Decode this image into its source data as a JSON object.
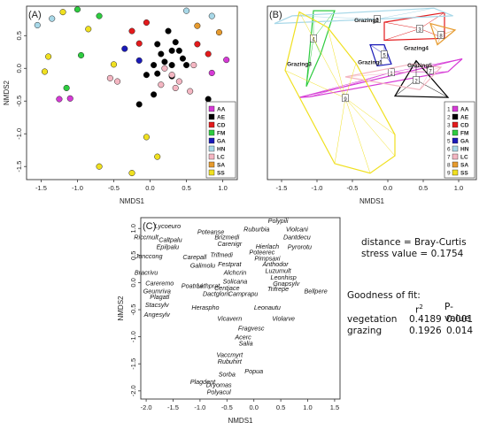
{
  "chart_data": [
    {
      "panel": "(A)",
      "type": "scatter",
      "xlabel": "NMDS1",
      "ylabel": "NMDS2",
      "xlim": [
        -1.7,
        1.2
      ],
      "ylim": [
        -1.7,
        0.95
      ],
      "xticks": [
        "-1.5",
        "-1.0",
        "-0.5",
        "0.0",
        "0.5",
        "1.0"
      ],
      "yticks": [
        "0.5",
        "0.0",
        "-0.5",
        "-1.0",
        "-1.5"
      ],
      "xtick_vals": [
        -1.5,
        -1.0,
        -0.5,
        0.0,
        0.5,
        1.0
      ],
      "ytick_vals": [
        0.5,
        0.0,
        -0.5,
        -1.0,
        -1.5
      ],
      "legend_position": "bottom-right",
      "series": [
        {
          "name": "AA",
          "color": "#d63ad6",
          "points": [
            [
              -1.25,
              -0.47
            ],
            [
              -1.1,
              -0.46
            ],
            [
              1.05,
              0.13
            ],
            [
              0.85,
              -0.07
            ]
          ]
        },
        {
          "name": "AE",
          "color": "#000000",
          "points": [
            [
              0.25,
              0.57
            ],
            [
              0.1,
              0.37
            ],
            [
              0.35,
              0.4
            ],
            [
              0.3,
              0.27
            ],
            [
              0.15,
              0.22
            ],
            [
              0.4,
              0.27
            ],
            [
              0.45,
              0.15
            ],
            [
              0.2,
              0.1
            ],
            [
              0.05,
              0.05
            ],
            [
              0.3,
              0.05
            ],
            [
              0.5,
              0.05
            ],
            [
              0.1,
              -0.08
            ],
            [
              0.3,
              -0.12
            ],
            [
              -0.05,
              -0.1
            ],
            [
              0.05,
              -0.4
            ],
            [
              -0.15,
              -0.55
            ],
            [
              0.8,
              -0.47
            ]
          ]
        },
        {
          "name": "CD",
          "color": "#e31a1c",
          "points": [
            [
              -0.05,
              0.7
            ],
            [
              -0.15,
              0.38
            ],
            [
              -0.25,
              0.57
            ],
            [
              0.65,
              0.37
            ],
            [
              0.8,
              0.22
            ]
          ]
        },
        {
          "name": "FM",
          "color": "#2ecc40",
          "points": [
            [
              -1.0,
              0.9
            ],
            [
              -0.7,
              0.8
            ],
            [
              -0.95,
              0.2
            ],
            [
              -1.15,
              -0.3
            ]
          ]
        },
        {
          "name": "GA",
          "color": "#1a1ab8",
          "points": [
            [
              -0.35,
              0.3
            ],
            [
              -0.15,
              0.12
            ]
          ]
        },
        {
          "name": "HN",
          "color": "#a8d8e8",
          "points": [
            [
              -1.55,
              0.66
            ],
            [
              -1.35,
              0.76
            ],
            [
              0.5,
              0.88
            ],
            [
              0.85,
              0.8
            ]
          ]
        },
        {
          "name": "LC",
          "color": "#f4b6c2",
          "points": [
            [
              0.2,
              0.0
            ],
            [
              0.3,
              -0.1
            ],
            [
              0.15,
              -0.25
            ],
            [
              0.4,
              -0.2
            ],
            [
              0.55,
              -0.35
            ],
            [
              0.35,
              -0.3
            ],
            [
              -0.45,
              -0.2
            ],
            [
              -0.55,
              -0.15
            ],
            [
              0.6,
              0.05
            ]
          ]
        },
        {
          "name": "SA",
          "color": "#e69a2e",
          "points": [
            [
              0.65,
              0.65
            ],
            [
              0.95,
              0.55
            ]
          ]
        },
        {
          "name": "SS",
          "color": "#f0e020",
          "points": [
            [
              -1.2,
              0.86
            ],
            [
              -0.85,
              0.6
            ],
            [
              -1.4,
              0.18
            ],
            [
              -1.45,
              -0.05
            ],
            [
              -0.5,
              0.06
            ],
            [
              -0.05,
              -1.05
            ],
            [
              0.1,
              -1.35
            ],
            [
              -0.7,
              -1.5
            ],
            [
              -0.25,
              -1.6
            ]
          ]
        }
      ]
    },
    {
      "panel": "(B)",
      "type": "scatter",
      "xlabel": "NMDS1",
      "ylabel": "",
      "xlim": [
        -1.7,
        1.25
      ],
      "ylim": [
        -1.75,
        0.95
      ],
      "xticks": [
        "-1.5",
        "-1.0",
        "-0.5",
        "0.0",
        "0.5",
        "1.0"
      ],
      "xtick_vals": [
        -1.5,
        -1.0,
        -0.5,
        0.0,
        0.5,
        1.0
      ],
      "legend_position": "bottom-right",
      "legend": [
        {
          "num": "1",
          "name": "AA",
          "color": "#d63ad6"
        },
        {
          "num": "2",
          "name": "AE",
          "color": "#000000"
        },
        {
          "num": "3",
          "name": "CD",
          "color": "#e31a1c"
        },
        {
          "num": "4",
          "name": "FM",
          "color": "#2ecc40"
        },
        {
          "num": "5",
          "name": "GA",
          "color": "#1a1ab8"
        },
        {
          "num": "6",
          "name": "HN",
          "color": "#a8d8e8"
        },
        {
          "num": "7",
          "name": "LC",
          "color": "#f4b6c2"
        },
        {
          "num": "8",
          "name": "SA",
          "color": "#e69a2e"
        },
        {
          "num": "9",
          "name": "SS",
          "color": "#f0e020"
        }
      ],
      "hulls": [
        {
          "num": "1",
          "color": "#d63ad6",
          "centroid": [
            0.05,
            -0.08
          ],
          "points": [
            [
              -1.25,
              -0.47
            ],
            [
              -1.1,
              -0.46
            ],
            [
              0.85,
              -0.07
            ],
            [
              1.05,
              0.13
            ]
          ]
        },
        {
          "num": "2",
          "color": "#000000",
          "centroid": [
            0.4,
            -0.2
          ],
          "points": [
            [
              0.1,
              -0.45
            ],
            [
              0.4,
              0.1
            ],
            [
              0.85,
              -0.47
            ]
          ]
        },
        {
          "num": "3",
          "color": "#e31a1c",
          "centroid": [
            0.45,
            0.6
          ],
          "points": [
            [
              -0.05,
              0.7
            ],
            [
              0.8,
              0.85
            ],
            [
              0.8,
              0.45
            ],
            [
              -0.05,
              0.42
            ]
          ]
        },
        {
          "num": "4",
          "color": "#2ecc40",
          "centroid": [
            -1.05,
            0.45
          ],
          "points": [
            [
              -1.05,
              0.88
            ],
            [
              -0.75,
              0.88
            ],
            [
              -0.95,
              0.2
            ],
            [
              -1.15,
              -0.3
            ]
          ]
        },
        {
          "num": "5",
          "color": "#1a1ab8",
          "centroid": [
            -0.05,
            0.2
          ],
          "points": [
            [
              -0.25,
              0.35
            ],
            [
              -0.05,
              0.35
            ],
            [
              0.05,
              0.05
            ],
            [
              -0.15,
              0.02
            ]
          ]
        },
        {
          "num": "6",
          "color": "#a8d8e8",
          "centroid": [
            -0.15,
            0.75
          ],
          "points": [
            [
              -1.6,
              0.68
            ],
            [
              -1.35,
              0.8
            ],
            [
              0.65,
              0.92
            ],
            [
              0.92,
              0.8
            ]
          ]
        },
        {
          "num": "7",
          "color": "#f4b6c2",
          "centroid": [
            0.6,
            -0.05
          ],
          "points": [
            [
              -0.6,
              -0.15
            ],
            [
              0.35,
              0.05
            ],
            [
              0.75,
              0.0
            ],
            [
              0.45,
              -0.35
            ]
          ]
        },
        {
          "num": "8",
          "color": "#e69a2e",
          "centroid": [
            0.75,
            0.5
          ],
          "points": [
            [
              0.6,
              0.68
            ],
            [
              0.95,
              0.58
            ],
            [
              0.7,
              0.35
            ]
          ]
        },
        {
          "num": "9",
          "color": "#f0e020",
          "centroid": [
            -0.6,
            -0.48
          ],
          "points": [
            [
              -1.25,
              0.86
            ],
            [
              -0.85,
              0.62
            ],
            [
              -0.45,
              0.06
            ],
            [
              0.1,
              -1.05
            ],
            [
              0.1,
              -1.38
            ],
            [
              -0.25,
              -1.65
            ],
            [
              -0.75,
              -1.5
            ],
            [
              -1.45,
              -0.05
            ]
          ]
        }
      ],
      "grazing_labels": [
        {
          "label": "Grazing1",
          "pos": [
            -0.25,
            0.05
          ]
        },
        {
          "label": "Grazing2",
          "pos": [
            -0.3,
            0.7
          ]
        },
        {
          "label": "Grazing3",
          "pos": [
            -1.25,
            0.02
          ]
        },
        {
          "label": "Grazing4",
          "pos": [
            0.4,
            0.27
          ]
        },
        {
          "label": "Grazing5",
          "pos": [
            0.45,
            0.0
          ]
        }
      ]
    },
    {
      "panel": "(C)",
      "type": "scatter",
      "xlabel": "NMDS1",
      "ylabel": "NMDS2",
      "xlim": [
        -2.1,
        1.6
      ],
      "ylim": [
        -2.15,
        1.2
      ],
      "xticks": [
        "-2.0",
        "-1.5",
        "-1.0",
        "-0.5",
        "0.0",
        "0.5",
        "1.0",
        "1.5"
      ],
      "xtick_vals": [
        -2.0,
        -1.5,
        -1.0,
        -0.5,
        0.0,
        0.5,
        1.0,
        1.5
      ],
      "yticks": [
        "1.0",
        "0.5",
        "0.0",
        "-0.5",
        "-1.0",
        "-1.5",
        "-2.0"
      ],
      "ytick_vals": [
        1.0,
        0.5,
        0.0,
        -0.5,
        -1.0,
        -1.5,
        -2.0
      ],
      "species": [
        {
          "name": "Polypili",
          "x": 0.45,
          "y": 1.1
        },
        {
          "name": "Lycoeuro",
          "x": -1.6,
          "y": 1.0
        },
        {
          "name": "Ruburbia",
          "x": 0.05,
          "y": 0.95
        },
        {
          "name": "Violcani",
          "x": 0.8,
          "y": 0.95
        },
        {
          "name": "Poteanse",
          "x": -0.8,
          "y": 0.9
        },
        {
          "name": "Brizmedi",
          "x": -0.5,
          "y": 0.8
        },
        {
          "name": "Dantdecu",
          "x": 0.8,
          "y": 0.8
        },
        {
          "name": "Riccmult",
          "x": -2.0,
          "y": 0.8
        },
        {
          "name": "Caltpalu",
          "x": -1.55,
          "y": 0.75
        },
        {
          "name": "Carenigr",
          "x": -0.45,
          "y": 0.68
        },
        {
          "name": "Hierlach",
          "x": 0.25,
          "y": 0.63
        },
        {
          "name": "Pyrorotu",
          "x": 0.85,
          "y": 0.62
        },
        {
          "name": "Epilpalu",
          "x": -1.6,
          "y": 0.62
        },
        {
          "name": "Poteerec",
          "x": 0.15,
          "y": 0.52
        },
        {
          "name": "Trifmedi",
          "x": -0.6,
          "y": 0.47
        },
        {
          "name": "Junccong",
          "x": -1.95,
          "y": 0.45
        },
        {
          "name": "Carepall",
          "x": -1.1,
          "y": 0.43
        },
        {
          "name": "Pimpsaxi",
          "x": 0.25,
          "y": 0.41
        },
        {
          "name": "Festprat",
          "x": -0.45,
          "y": 0.3
        },
        {
          "name": "Anthodor",
          "x": 0.4,
          "y": 0.3
        },
        {
          "name": "Galimolu",
          "x": -0.95,
          "y": 0.28
        },
        {
          "name": "Luzumult",
          "x": 0.45,
          "y": 0.18
        },
        {
          "name": "Bracrivu",
          "x": -2.0,
          "y": 0.15
        },
        {
          "name": "Alchcrin",
          "x": -0.35,
          "y": 0.15
        },
        {
          "name": "Leonhisp",
          "x": 0.55,
          "y": 0.06
        },
        {
          "name": "Careremo",
          "x": -1.75,
          "y": -0.05
        },
        {
          "name": "Solicana",
          "x": -0.35,
          "y": -0.02
        },
        {
          "name": "Gnapsylv",
          "x": 0.6,
          "y": -0.06
        },
        {
          "name": "Poatrivi",
          "x": -1.15,
          "y": -0.1
        },
        {
          "name": "Lathprat",
          "x": -0.85,
          "y": -0.1
        },
        {
          "name": "Centjace",
          "x": -0.5,
          "y": -0.14
        },
        {
          "name": "Trifrepe",
          "x": 0.45,
          "y": -0.16
        },
        {
          "name": "Bellpere",
          "x": 1.15,
          "y": -0.2
        },
        {
          "name": "Geumriva",
          "x": -1.8,
          "y": -0.2
        },
        {
          "name": "Dactglom",
          "x": -0.7,
          "y": -0.25
        },
        {
          "name": "Camprapu",
          "x": -0.2,
          "y": -0.25
        },
        {
          "name": "Plagatl",
          "x": -1.75,
          "y": -0.3
        },
        {
          "name": "Stacsylv",
          "x": -1.8,
          "y": -0.45
        },
        {
          "name": "Heraspho",
          "x": -0.9,
          "y": -0.5
        },
        {
          "name": "Leonautu",
          "x": 0.25,
          "y": -0.5
        },
        {
          "name": "Angesylv",
          "x": -1.8,
          "y": -0.63
        },
        {
          "name": "Vicavern",
          "x": -0.45,
          "y": -0.7
        },
        {
          "name": "Violarve",
          "x": 0.55,
          "y": -0.7
        },
        {
          "name": "Fragvesc",
          "x": -0.05,
          "y": -0.88
        },
        {
          "name": "Acerc",
          "x": -0.2,
          "y": -1.05
        },
        {
          "name": "Salia",
          "x": -0.15,
          "y": -1.16
        },
        {
          "name": "Vaccmyrt",
          "x": -0.45,
          "y": -1.37
        },
        {
          "name": "Rubuhirt",
          "x": -0.45,
          "y": -1.5
        },
        {
          "name": "Sorba",
          "x": -0.5,
          "y": -1.73
        },
        {
          "name": "Popua",
          "x": 0.0,
          "y": -1.68
        },
        {
          "name": "Plagdent",
          "x": -0.95,
          "y": -1.87
        },
        {
          "name": "Dryomas",
          "x": -0.65,
          "y": -1.93
        },
        {
          "name": "Polyacul",
          "x": -0.65,
          "y": -2.06
        }
      ]
    }
  ],
  "stats": {
    "distance": "distance = Bray-Curtis",
    "stress": "stress value = 0.1754",
    "gof_title": "Goodness of fit:",
    "col_r2": "r",
    "col_r2_sup": "2",
    "col_p": "P-value",
    "rows": [
      {
        "label": "vegetation",
        "r2": "0.4189",
        "p": "0.001"
      },
      {
        "label": "grazing",
        "r2": "0.1926",
        "p": "0.014"
      }
    ]
  }
}
